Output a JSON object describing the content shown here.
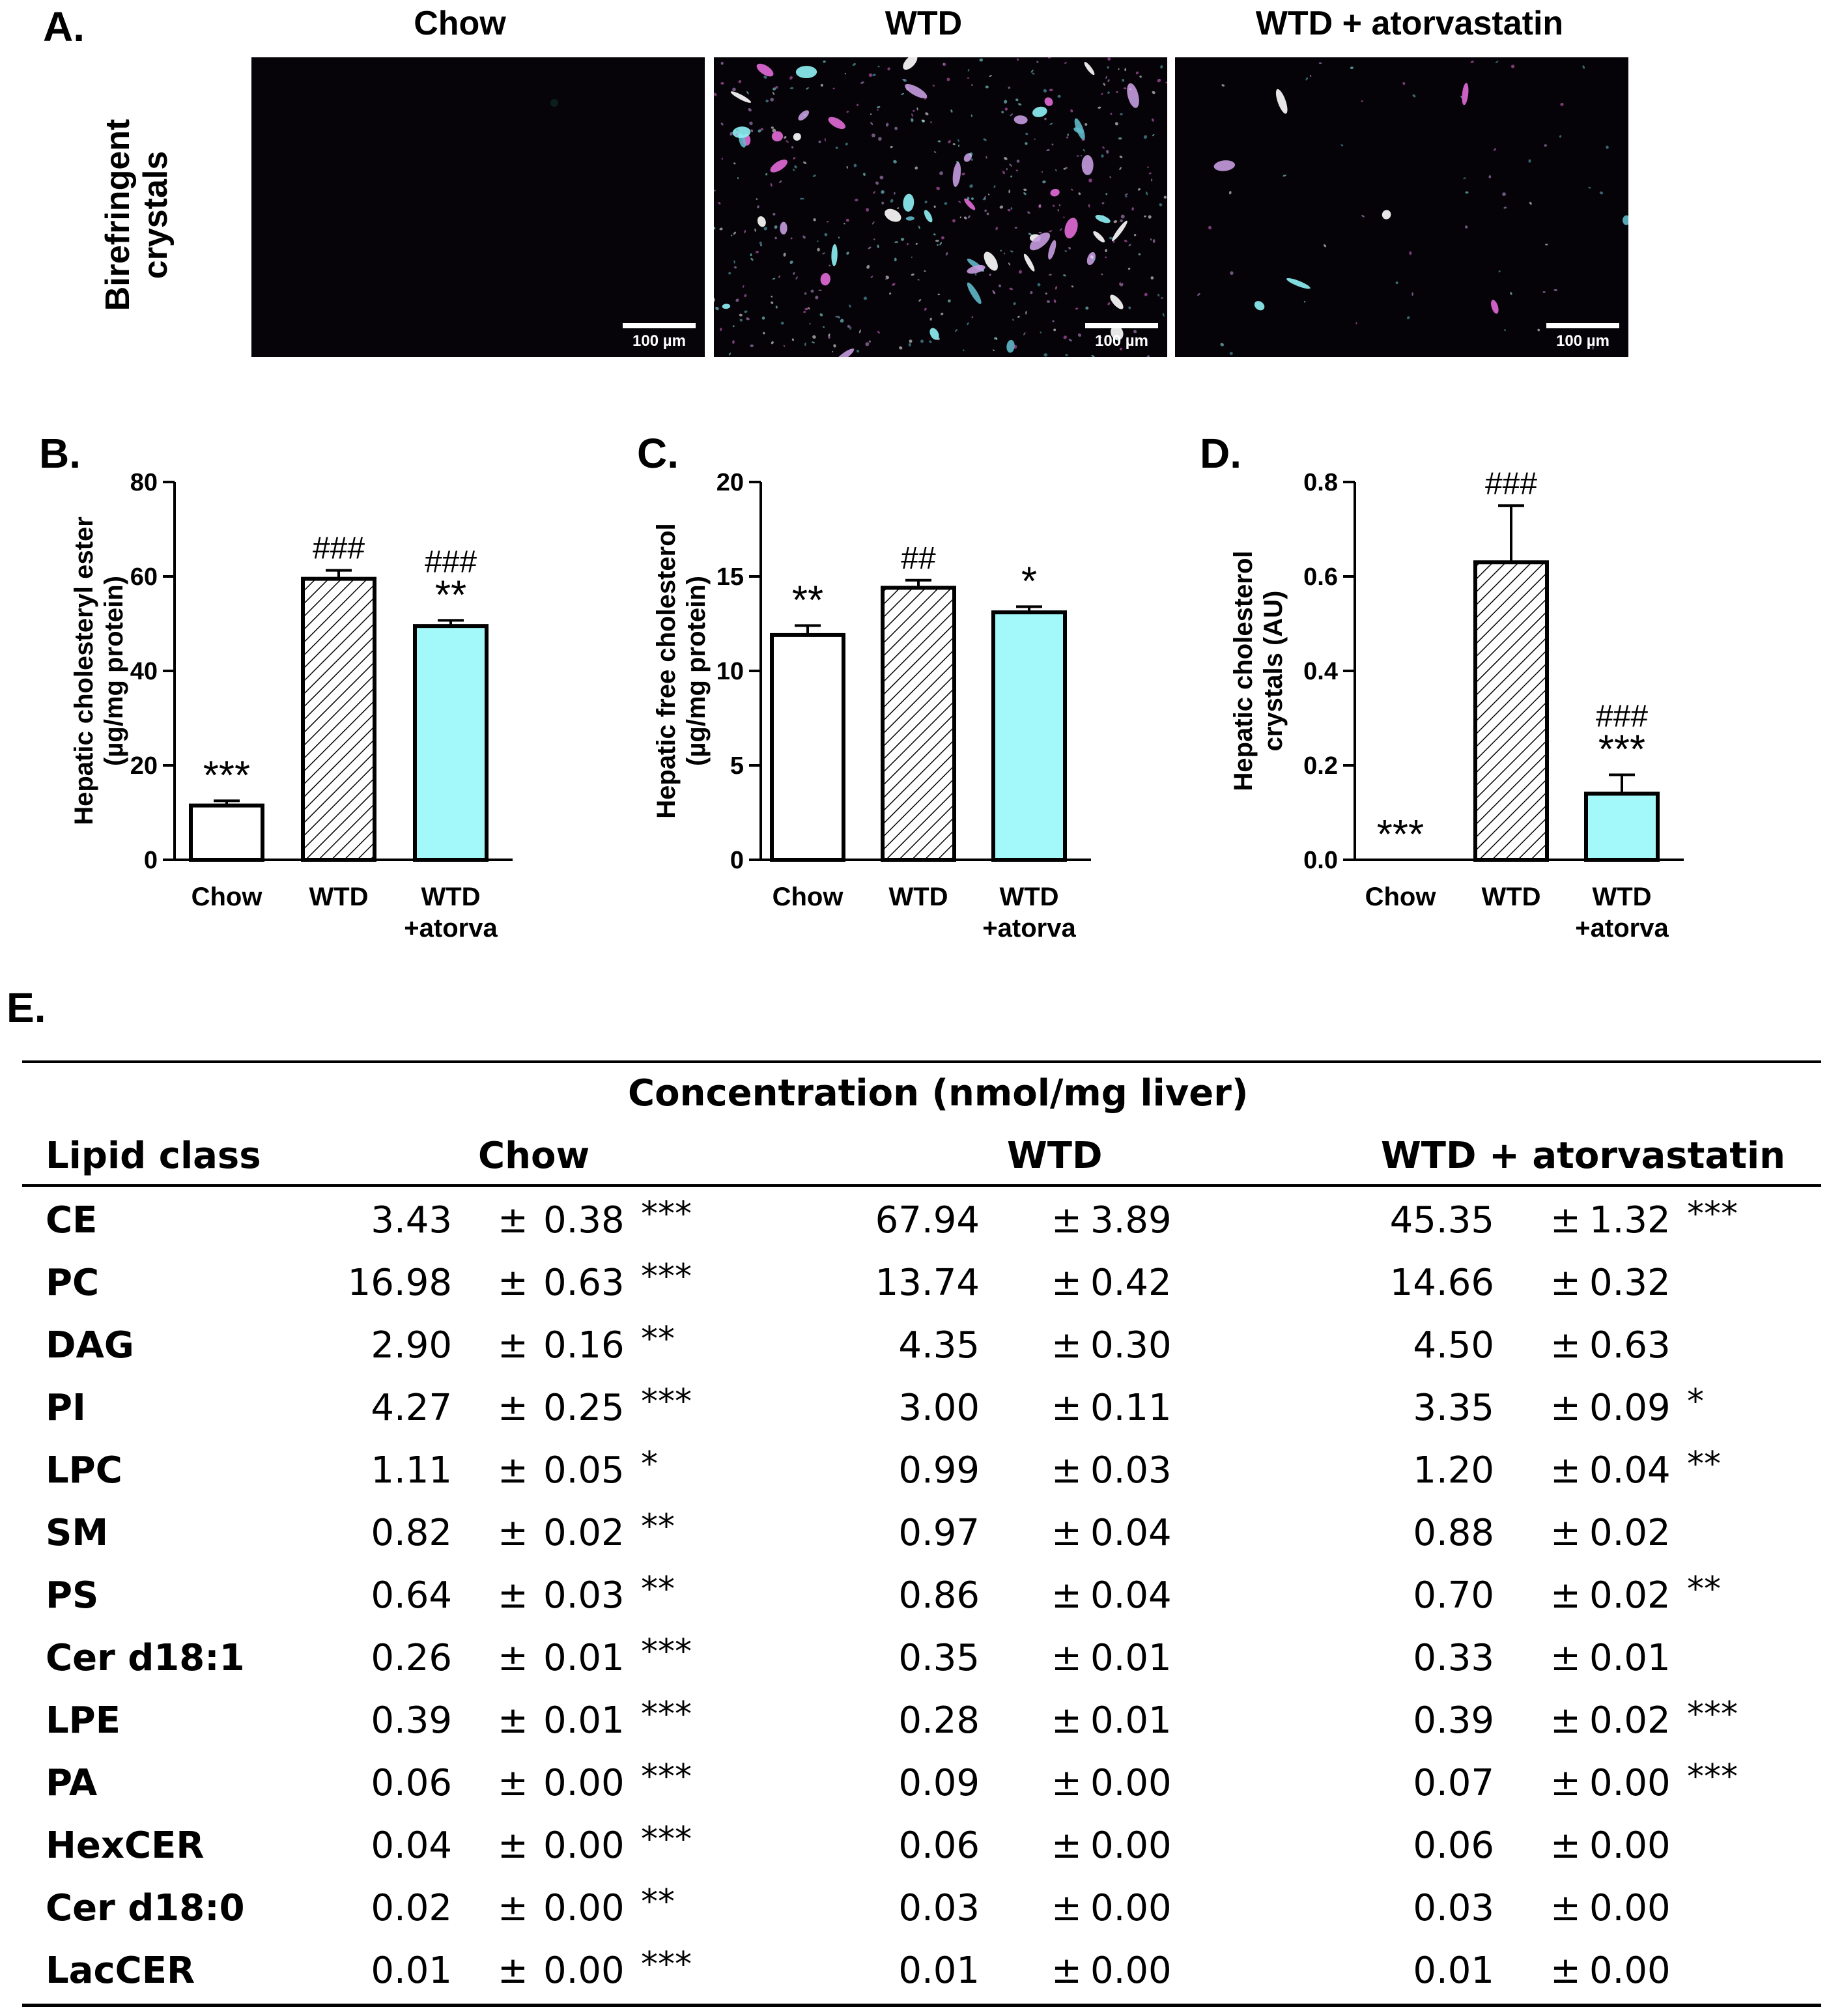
{
  "panel_a": {
    "letter": "A.",
    "ylabel_line1": "Birefringent",
    "ylabel_line2": "crystals",
    "images": [
      {
        "title": "Chow",
        "scale": "100 µm"
      },
      {
        "title": "WTD",
        "scale": "100 µm"
      },
      {
        "title": "WTD + atorvastatin",
        "scale": "100 µm"
      }
    ]
  },
  "chart_data": [
    {
      "panel": "B.",
      "type": "bar",
      "categories": [
        "Chow",
        "WTD",
        "WTD +atorva"
      ],
      "category_lines": [
        [
          "Chow"
        ],
        [
          "WTD"
        ],
        [
          "WTD",
          "+atorva"
        ]
      ],
      "values": [
        11.5,
        59.5,
        49.5
      ],
      "errors": [
        1.0,
        1.8,
        1.2
      ],
      "fills": [
        "white",
        "hatch",
        "#a3f8f9"
      ],
      "annotations": [
        [
          "***"
        ],
        [
          "###"
        ],
        [
          "###",
          "**"
        ]
      ],
      "ylabel_line1": "Hepatic cholesteryl ester",
      "ylabel_line2": "(µg/mg protein)",
      "ylim": [
        0,
        80
      ],
      "yticks": [
        0,
        20,
        40,
        60,
        80
      ],
      "tick_labels": [
        "0",
        "20",
        "40",
        "60",
        "80"
      ]
    },
    {
      "panel": "C.",
      "type": "bar",
      "categories": [
        "Chow",
        "WTD",
        "WTD +atorva"
      ],
      "category_lines": [
        [
          "Chow"
        ],
        [
          "WTD"
        ],
        [
          "WTD",
          "+atorva"
        ]
      ],
      "values": [
        11.9,
        14.4,
        13.1
      ],
      "errors": [
        0.5,
        0.4,
        0.3
      ],
      "fills": [
        "white",
        "hatch",
        "#a3f8f9"
      ],
      "annotations": [
        [
          "**"
        ],
        [
          "##"
        ],
        [
          "*"
        ]
      ],
      "ylabel_line1": "Hepatic free cholesterol",
      "ylabel_line2": "(µg/mg protein)",
      "ylim": [
        0,
        20
      ],
      "yticks": [
        0,
        5,
        10,
        15,
        20
      ],
      "tick_labels": [
        "0",
        "5",
        "10",
        "15",
        "20"
      ]
    },
    {
      "panel": "D.",
      "type": "bar",
      "categories": [
        "Chow",
        "WTD",
        "WTD +atorva"
      ],
      "category_lines": [
        [
          "Chow"
        ],
        [
          "WTD"
        ],
        [
          "WTD",
          "+atorva"
        ]
      ],
      "values": [
        0.0,
        0.63,
        0.14
      ],
      "errors": [
        0.0,
        0.12,
        0.04
      ],
      "fills": [
        "white",
        "hatch",
        "#a3f8f9"
      ],
      "annotations": [
        [
          "***"
        ],
        [
          "###"
        ],
        [
          "###",
          "***"
        ]
      ],
      "ylabel_line1": "Hepatic cholesterol",
      "ylabel_line2": "crystals (AU)",
      "ylim": [
        0,
        0.8
      ],
      "yticks": [
        0,
        0.2,
        0.4,
        0.6,
        0.8
      ],
      "tick_labels": [
        "0.0",
        "0.2",
        "0.4",
        "0.6",
        "0.8"
      ]
    }
  ],
  "table_e": {
    "letter": "E.",
    "title": "Concentration (nmol/mg liver)",
    "col_lipid": "Lipid class",
    "groups": [
      "Chow",
      "WTD",
      "WTD + atorvastatin"
    ],
    "pm": "±",
    "rows": [
      {
        "name": "CE",
        "v": [
          "3.43",
          "0.38",
          "***",
          "67.94",
          "3.89",
          "",
          "45.35",
          "1.32",
          "***"
        ]
      },
      {
        "name": "PC",
        "v": [
          "16.98",
          "0.63",
          "***",
          "13.74",
          "0.42",
          "",
          "14.66",
          "0.32",
          ""
        ]
      },
      {
        "name": "DAG",
        "v": [
          "2.90",
          "0.16",
          "**",
          "4.35",
          "0.30",
          "",
          "4.50",
          "0.63",
          ""
        ]
      },
      {
        "name": "PI",
        "v": [
          "4.27",
          "0.25",
          "***",
          "3.00",
          "0.11",
          "",
          "3.35",
          "0.09",
          "*"
        ]
      },
      {
        "name": "LPC",
        "v": [
          "1.11",
          "0.05",
          "*",
          "0.99",
          "0.03",
          "",
          "1.20",
          "0.04",
          "**"
        ]
      },
      {
        "name": "SM",
        "v": [
          "0.82",
          "0.02",
          "**",
          "0.97",
          "0.04",
          "",
          "0.88",
          "0.02",
          ""
        ]
      },
      {
        "name": "PS",
        "v": [
          "0.64",
          "0.03",
          "**",
          "0.86",
          "0.04",
          "",
          "0.70",
          "0.02",
          "**"
        ]
      },
      {
        "name": "Cer d18:1",
        "v": [
          "0.26",
          "0.01",
          "***",
          "0.35",
          "0.01",
          "",
          "0.33",
          "0.01",
          ""
        ]
      },
      {
        "name": "LPE",
        "v": [
          "0.39",
          "0.01",
          "***",
          "0.28",
          "0.01",
          "",
          "0.39",
          "0.02",
          "***"
        ]
      },
      {
        "name": "PA",
        "v": [
          "0.06",
          "0.00",
          "***",
          "0.09",
          "0.00",
          "",
          "0.07",
          "0.00",
          "***"
        ]
      },
      {
        "name": "HexCER",
        "v": [
          "0.04",
          "0.00",
          "***",
          "0.06",
          "0.00",
          "",
          "0.06",
          "0.00",
          ""
        ]
      },
      {
        "name": "Cer d18:0",
        "v": [
          "0.02",
          "0.00",
          "**",
          "0.03",
          "0.00",
          "",
          "0.03",
          "0.00",
          ""
        ]
      },
      {
        "name": "LacCER",
        "v": [
          "0.01",
          "0.00",
          "***",
          "0.01",
          "0.00",
          "",
          "0.01",
          "0.00",
          ""
        ]
      }
    ]
  }
}
